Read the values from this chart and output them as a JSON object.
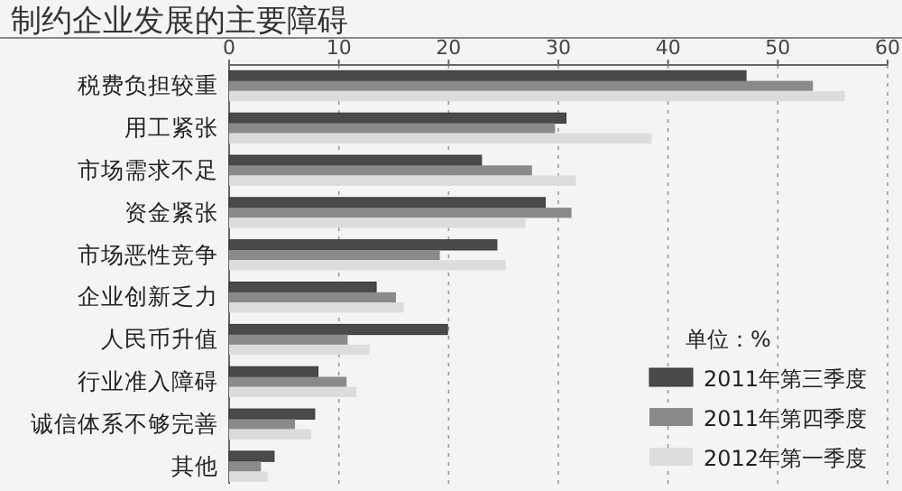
{
  "chart_data": {
    "type": "bar",
    "orientation": "horizontal",
    "title": "制约企业发展的主要障碍",
    "legend_title": "单位：%",
    "categories": [
      "税费负担较重",
      "用工紧张",
      "市场需求不足",
      "资金紧张",
      "市场恶性竞争",
      "企业创新乏力",
      "人民币升值",
      "行业准入障碍",
      "诚信体系不够完善",
      "其他"
    ],
    "series": [
      {
        "name": "2011年第三季度",
        "color": "#4a4a4a",
        "values": [
          47.1,
          30.7,
          23.0,
          28.8,
          24.4,
          13.4,
          19.9,
          8.1,
          7.8,
          4.1
        ]
      },
      {
        "name": "2011年第四季度",
        "color": "#8a8a8a",
        "values": [
          53.2,
          29.7,
          27.6,
          31.2,
          19.2,
          15.2,
          10.8,
          10.7,
          6.0,
          2.9
        ]
      },
      {
        "name": "2012年第一季度",
        "color": "#dcdcdc",
        "values": [
          56.1,
          38.5,
          31.6,
          27.0,
          25.2,
          15.9,
          12.8,
          11.6,
          7.5,
          3.5
        ]
      }
    ],
    "xlim": [
      0,
      60
    ],
    "xticks": [
      0,
      10,
      20,
      30,
      40,
      50,
      60
    ],
    "grid": "x",
    "legend": "bottom right"
  }
}
